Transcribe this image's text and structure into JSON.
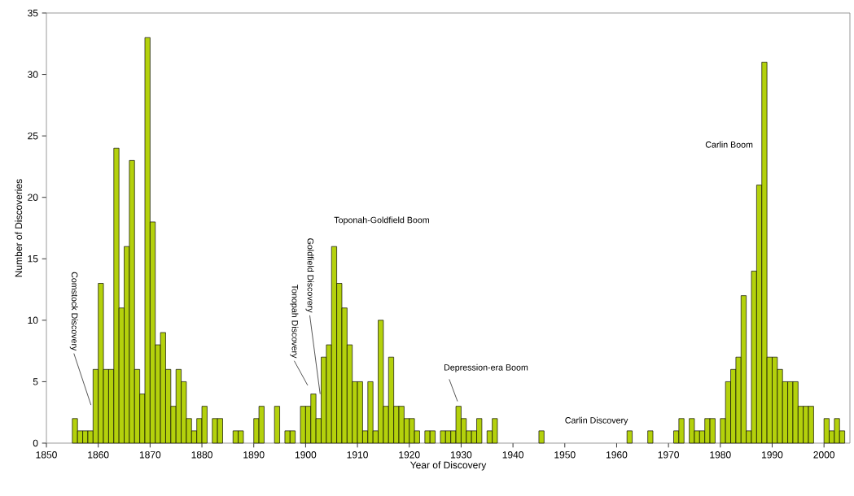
{
  "chart_data": {
    "type": "histogram",
    "xlabel": "Year of Discovery",
    "ylabel": "Number of Discoveries",
    "color": "#b4d10c",
    "bins": [
      1855,
      1856,
      1857,
      1858,
      1859,
      1860,
      1861,
      1862,
      1863,
      1864,
      1865,
      1866,
      1867,
      1868,
      1869,
      1870,
      1871,
      1872,
      1873,
      1874,
      1875,
      1876,
      1877,
      1878,
      1879,
      1880,
      1881,
      1882,
      1883,
      1884,
      1885,
      1886,
      1887,
      1888,
      1889,
      1890,
      1891,
      1892,
      1893,
      1894,
      1895,
      1896,
      1897,
      1898,
      1899,
      1900,
      1901,
      1902,
      1903,
      1904,
      1905,
      1906,
      1907,
      1908,
      1909,
      1910,
      1911,
      1912,
      1913,
      1914,
      1915,
      1916,
      1917,
      1918,
      1919,
      1920,
      1921,
      1922,
      1923,
      1924,
      1925,
      1926,
      1927,
      1928,
      1929,
      1930,
      1931,
      1932,
      1933,
      1934,
      1935,
      1936,
      1937,
      1938,
      1939,
      1940,
      1941,
      1942,
      1943,
      1944,
      1945,
      1946,
      1947,
      1948,
      1949,
      1950,
      1951,
      1952,
      1953,
      1954,
      1955,
      1956,
      1957,
      1958,
      1959,
      1960,
      1961,
      1962,
      1963,
      1964,
      1965,
      1966,
      1967,
      1968,
      1969,
      1970,
      1971,
      1972,
      1973,
      1974,
      1975,
      1976,
      1977,
      1978,
      1979,
      1980,
      1981,
      1982,
      1983,
      1984,
      1985,
      1986,
      1987,
      1988,
      1989,
      1990,
      1991,
      1992,
      1993,
      1994,
      1995,
      1996,
      1997,
      1998,
      1999,
      2000,
      2001,
      2002,
      2003,
      2004
    ],
    "values": [
      2,
      1,
      1,
      1,
      6,
      13,
      6,
      6,
      24,
      11,
      16,
      23,
      6,
      4,
      33,
      18,
      8,
      9,
      6,
      3,
      6,
      5,
      2,
      1,
      2,
      3,
      0,
      2,
      2,
      0,
      0,
      1,
      1,
      0,
      0,
      2,
      3,
      0,
      0,
      3,
      0,
      1,
      1,
      0,
      3,
      3,
      4,
      2,
      7,
      8,
      16,
      13,
      11,
      8,
      5,
      5,
      1,
      5,
      1,
      10,
      3,
      7,
      3,
      3,
      2,
      2,
      1,
      0,
      1,
      1,
      0,
      1,
      1,
      1,
      3,
      2,
      1,
      1,
      2,
      0,
      1,
      2,
      0,
      0,
      0,
      0,
      0,
      0,
      0,
      0,
      1,
      0,
      0,
      0,
      0,
      0,
      0,
      0,
      0,
      0,
      0,
      0,
      0,
      0,
      0,
      0,
      0,
      1,
      0,
      0,
      0,
      1,
      0,
      0,
      0,
      0,
      1,
      2,
      0,
      2,
      1,
      1,
      2,
      2,
      0,
      2,
      5,
      6,
      7,
      12,
      1,
      14,
      21,
      31,
      7,
      7,
      6,
      5,
      5,
      5,
      3,
      3,
      3,
      0,
      0,
      2,
      1,
      2,
      1
    ],
    "xlim": [
      1850,
      2005
    ],
    "ylim": [
      0,
      35
    ],
    "xticks": [
      1850,
      1860,
      1870,
      1880,
      1890,
      1900,
      1910,
      1920,
      1930,
      1940,
      1950,
      1960,
      1970,
      1980,
      1990,
      2000
    ],
    "yticks": [
      0,
      5,
      10,
      15,
      20,
      25,
      30,
      35
    ],
    "annotations": [
      {
        "text": "Comstock Discovery",
        "x": 1858.6,
        "y": 3.1
      },
      "Tonopah Discovery",
      {
        "text": "Goldfield Discovery",
        "x": 1902.8,
        "y": 4.0
      },
      "Toponah-Goldfield Boom",
      "Depression-era Boom",
      "Carlin Discovery",
      "Carlin Boom"
    ]
  }
}
